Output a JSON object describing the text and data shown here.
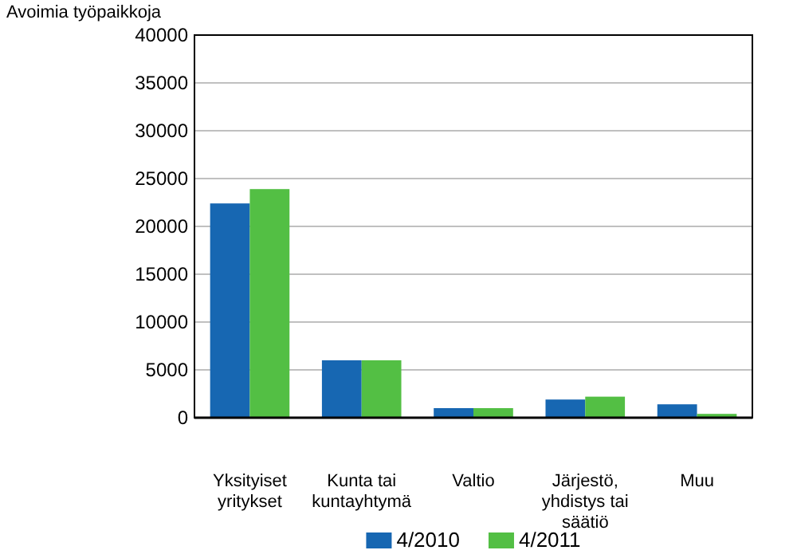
{
  "chart_data": {
    "type": "bar",
    "ylabel": "Avoimia työpaikkoja",
    "categories": [
      "Yksityiset yritykset",
      "Kunta tai kuntayhtymä",
      "Valtio",
      "Järjestö, yhdistys tai säätiö",
      "Muu"
    ],
    "series": [
      {
        "name": "4/2010",
        "color": "#1767b2",
        "values": [
          22400,
          6000,
          1000,
          1900,
          1400
        ]
      },
      {
        "name": "4/2011",
        "color": "#53bf44",
        "values": [
          23900,
          6000,
          1000,
          2200,
          400
        ]
      }
    ],
    "ylim": [
      0,
      40000
    ],
    "yticks": [
      0,
      5000,
      10000,
      15000,
      20000,
      25000,
      30000,
      35000,
      40000
    ],
    "grid": "y",
    "legend": "bottom"
  }
}
